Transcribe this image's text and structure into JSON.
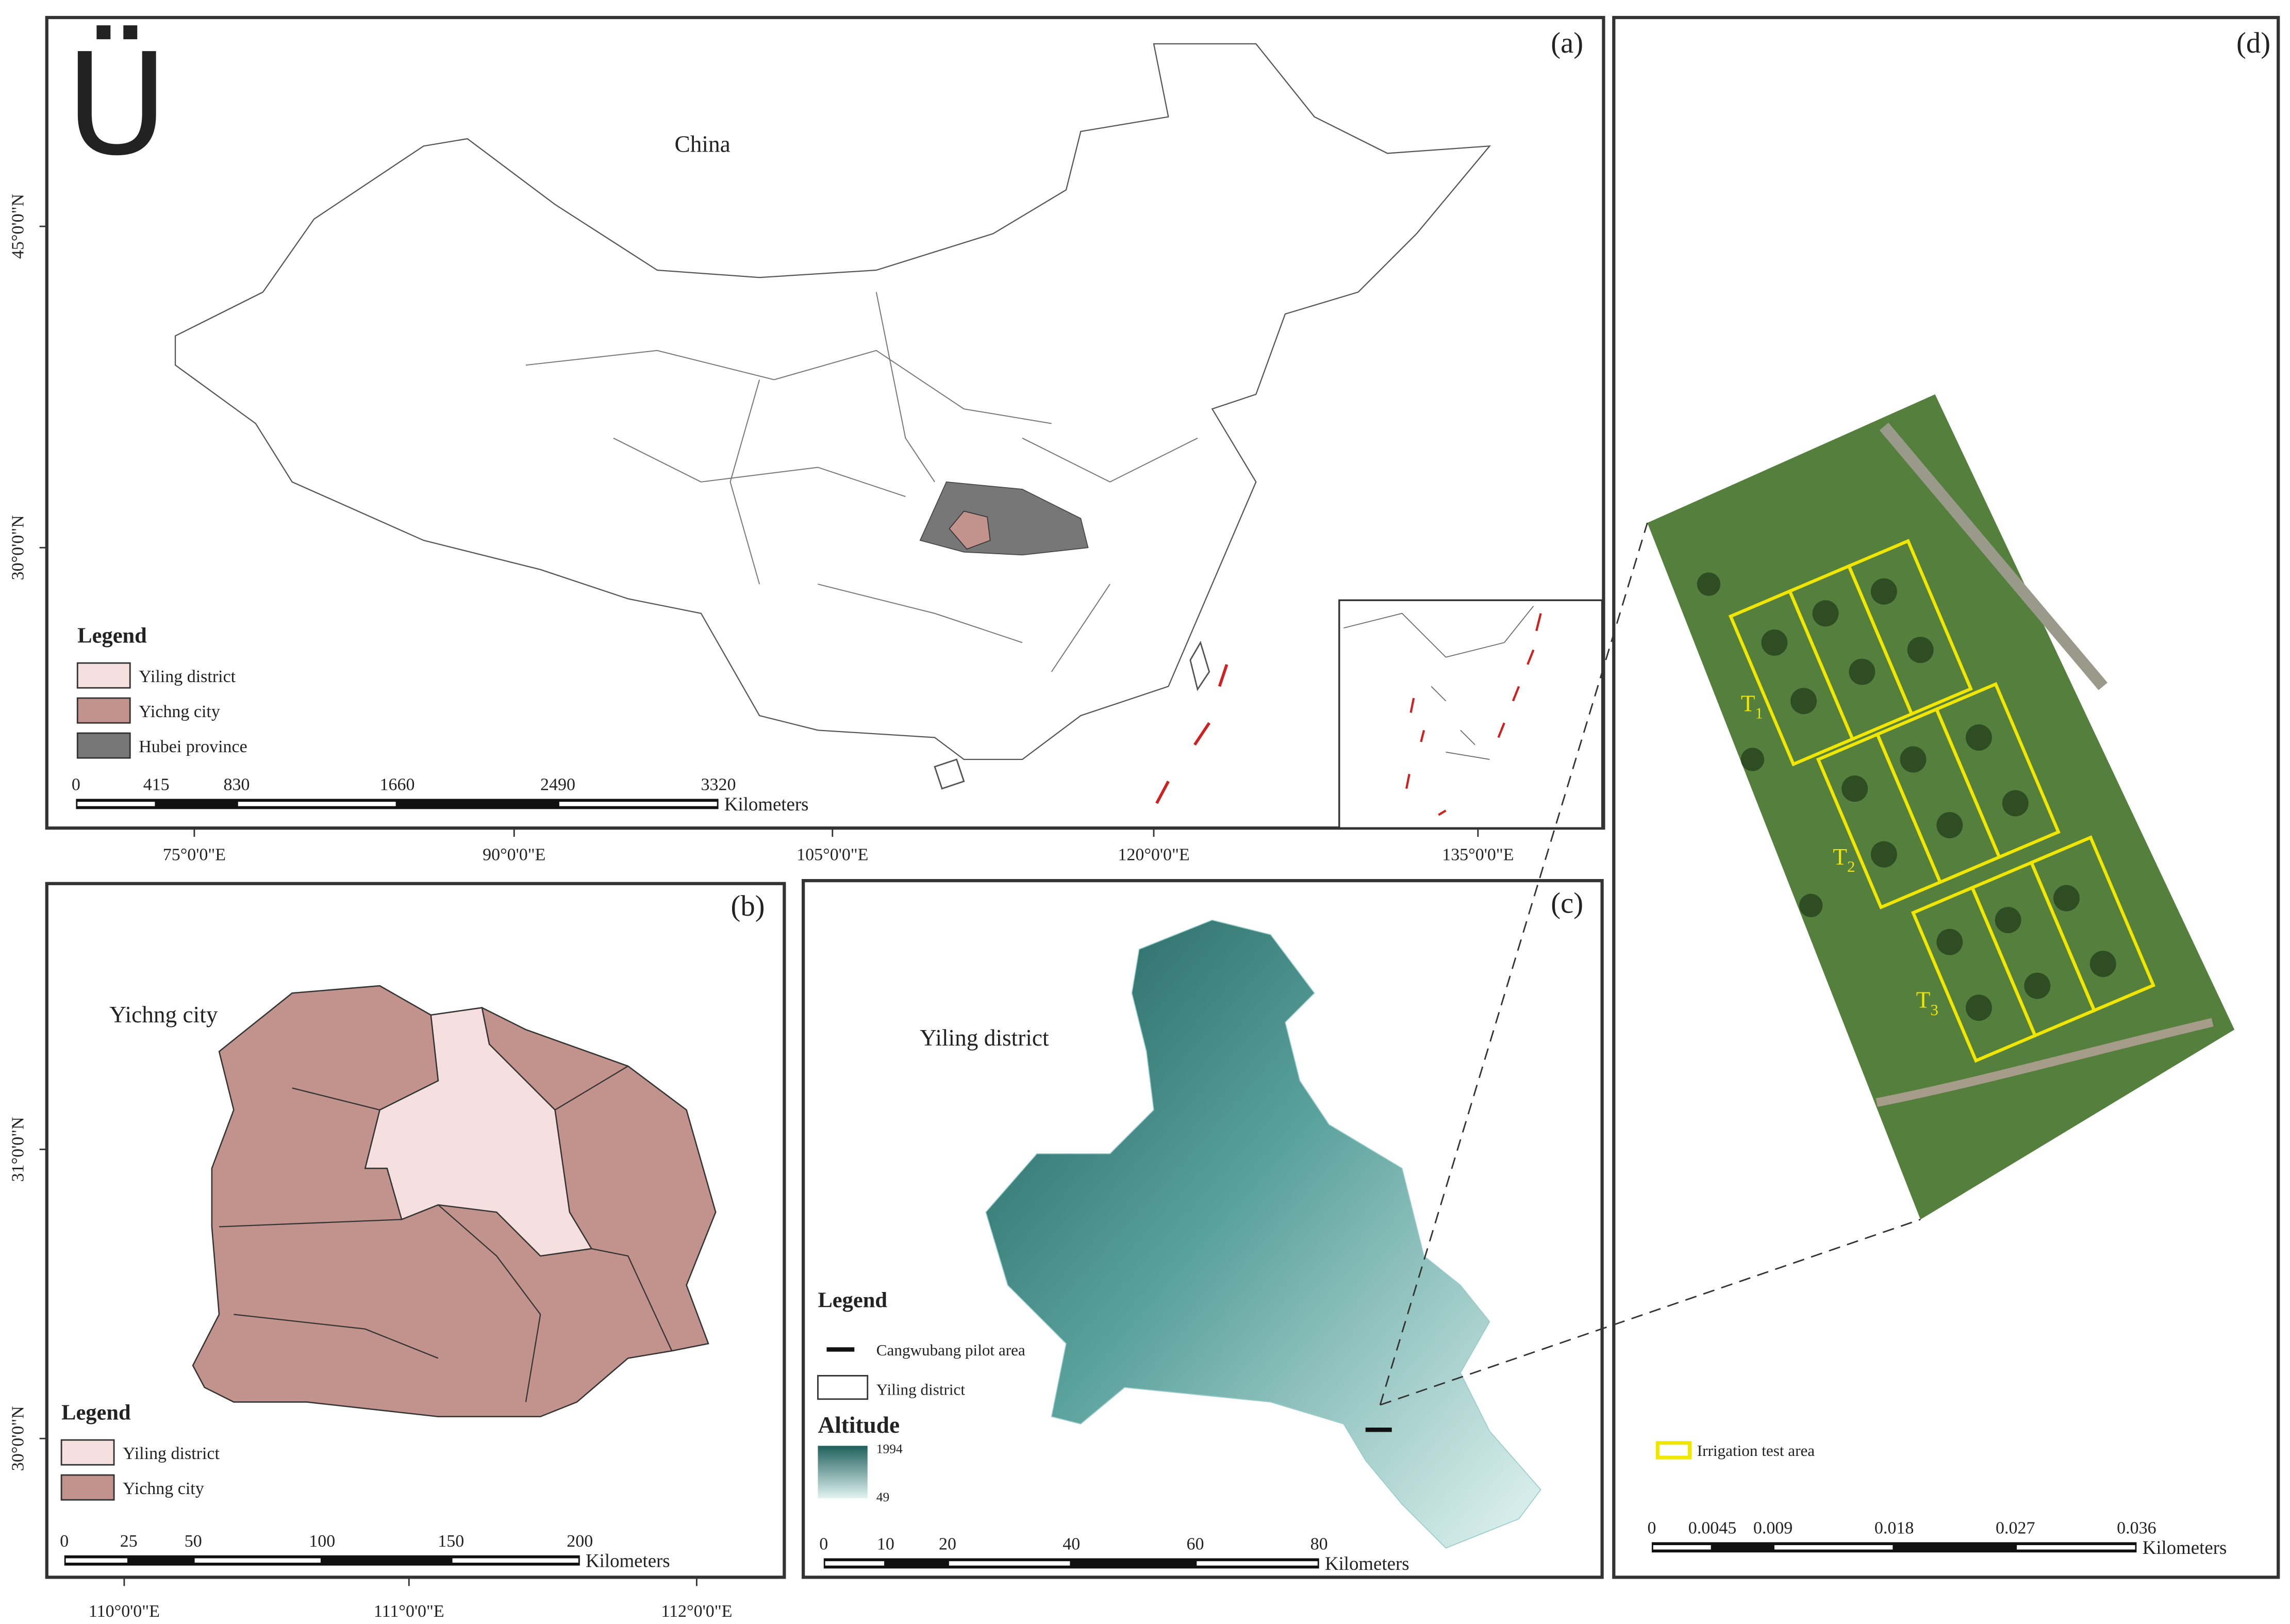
{
  "panels": {
    "a": {
      "label": "(a)",
      "title": "China",
      "north_arrow": "Ü",
      "lat_labels": [
        "45°0'0\"N",
        "30°0'0\"N"
      ],
      "lon_labels": [
        "75°0'0\"E",
        "90°0'0\"E",
        "105°0'0\"E",
        "120°0'0\"E",
        "135°0'0\"E"
      ],
      "legend": {
        "title": "Legend",
        "items": [
          {
            "label": "Yiling district",
            "color": "#f6dfdf"
          },
          {
            "label": "Yichng city",
            "color": "#c2938c"
          },
          {
            "label": "Hubei province",
            "color": "#777777"
          }
        ]
      },
      "scale": {
        "ticks": [
          0,
          415,
          830,
          1660,
          2490,
          3320
        ],
        "unit": "Kilometers"
      }
    },
    "b": {
      "label": "(b)",
      "title": "Yichng city",
      "lat_labels": [
        "31°0'0\"N",
        "30°0'0\"N"
      ],
      "lon_labels": [
        "110°0'0\"E",
        "111°0'0\"E",
        "112°0'0\"E"
      ],
      "legend": {
        "title": "Legend",
        "items": [
          {
            "label": "Yiling district",
            "color": "#f6dfdf"
          },
          {
            "label": "Yichng city",
            "color": "#c2938c"
          }
        ]
      },
      "scale": {
        "ticks": [
          0,
          25,
          50,
          100,
          150,
          200
        ],
        "unit": "Kilometers"
      }
    },
    "c": {
      "label": "(c)",
      "title": "Yiling district",
      "legend": {
        "title": "Legend",
        "pilot": "Cangwubang pilot area",
        "district": "Yiling district",
        "altitude_title": "Altitude",
        "altitude_max": 1994,
        "altitude_min": 49
      },
      "scale": {
        "ticks": [
          0,
          10,
          20,
          40,
          60,
          80
        ],
        "unit": "Kilometers"
      }
    },
    "d": {
      "label": "(d)",
      "plots": [
        {
          "letter": "T",
          "index": "1"
        },
        {
          "letter": "T",
          "index": "2"
        },
        {
          "letter": "T",
          "index": "3"
        }
      ],
      "legend": "Irrigation test area",
      "scale": {
        "ticks": [
          0,
          0.0045,
          0.009,
          0.018,
          0.027,
          0.036
        ],
        "unit": "Kilometers"
      }
    }
  }
}
